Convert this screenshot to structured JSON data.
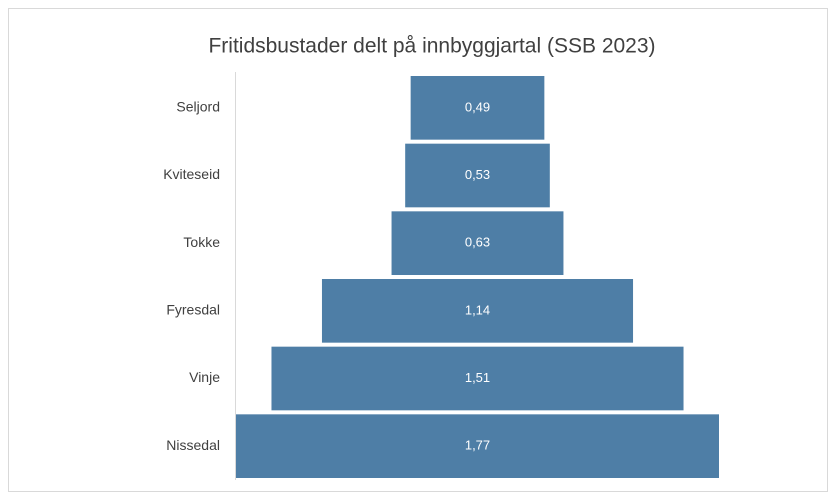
{
  "chart_data": {
    "type": "funnel",
    "title": "Fritidsbustader delt på innbyggjartal (SSB 2023)",
    "categories": [
      "Seljord",
      "Kviteseid",
      "Tokke",
      "Fyresdal",
      "Vinje",
      "Nissedal"
    ],
    "values": [
      0.49,
      0.53,
      0.63,
      1.14,
      1.51,
      1.77
    ],
    "value_labels": [
      "0,49",
      "0,53",
      "0,63",
      "1,14",
      "1,51",
      "1,77"
    ],
    "color": "#4e7ea6"
  }
}
